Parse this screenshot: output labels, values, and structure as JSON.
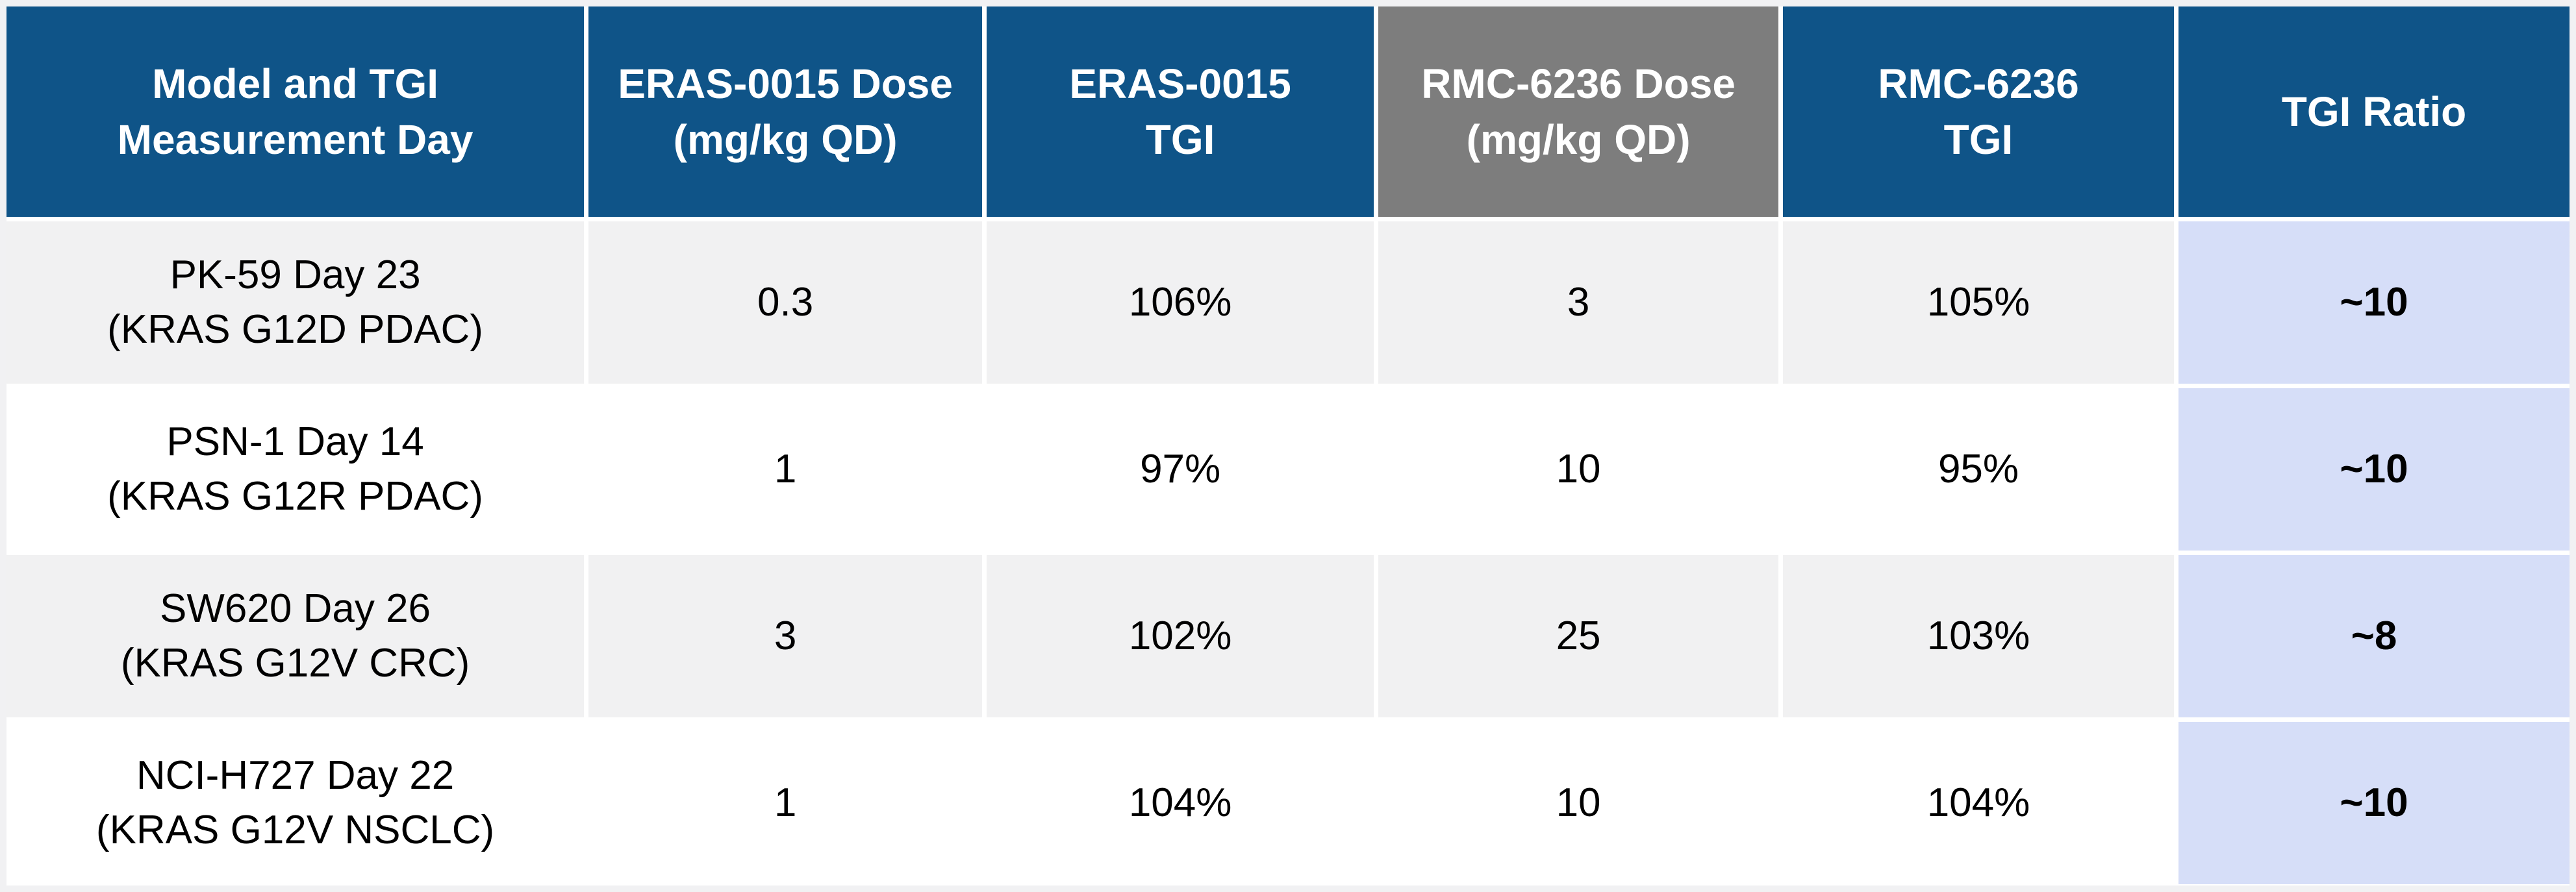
{
  "title": "ERAS-0015 vs RMC-6236 tumor growth inhibition (TGI) comparison table",
  "colors": {
    "header_blue": "#0F5488",
    "header_gray": "#7D7D7D",
    "header_text": "#FFFFFF",
    "body_text": "#000000",
    "row_alt": "#F1F1F2",
    "row_white": "#FFFFFF",
    "ratio_bg": "#D6DEF8",
    "frame": "#F1F1F3"
  },
  "table": {
    "headers": [
      "Model and TGI\nMeasurement Day",
      "ERAS-0015 Dose\n(mg/kg QD)",
      "ERAS-0015\nTGI",
      "RMC-6236 Dose\n(mg/kg QD)",
      "RMC-6236\nTGI",
      "TGI Ratio"
    ],
    "rows": [
      {
        "cells": [
          "PK-59 Day 23\n(KRAS G12D PDAC)",
          "0.3",
          "106%",
          "3",
          "105%",
          "~10"
        ]
      },
      {
        "cells": [
          "PSN-1 Day 14\n(KRAS G12R PDAC)",
          "1",
          "97%",
          "10",
          "95%",
          "~10"
        ]
      },
      {
        "cells": [
          "SW620 Day 26\n(KRAS G12V CRC)",
          "3",
          "102%",
          "25",
          "103%",
          "~8"
        ]
      },
      {
        "cells": [
          "NCI-H727 Day 22\n(KRAS G12V NSCLC)",
          "1",
          "104%",
          "10",
          "104%",
          "~10"
        ]
      }
    ]
  }
}
